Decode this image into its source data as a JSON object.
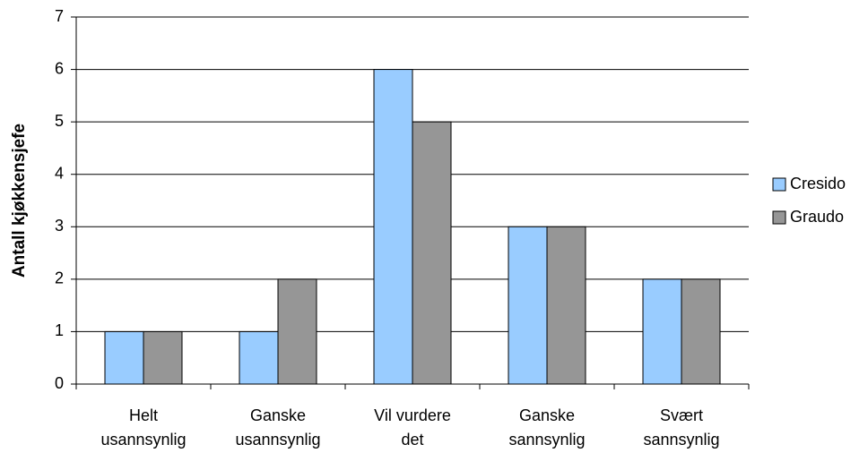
{
  "chart_data": {
    "type": "bar",
    "categories": [
      [
        "Helt",
        "usannsynlig"
      ],
      [
        "Ganske",
        "usannsynlig"
      ],
      [
        "Vil vurdere",
        "det"
      ],
      [
        "Ganske",
        "sannsynlig"
      ],
      [
        "Svært",
        "sannsynlig"
      ]
    ],
    "series": [
      {
        "name": "Cresido",
        "color": "#99ccff",
        "values": [
          1,
          1,
          6,
          3,
          2
        ]
      },
      {
        "name": "Graudo",
        "color": "#969696",
        "values": [
          1,
          2,
          5,
          3,
          2
        ]
      }
    ],
    "ylabel": "Antall kjøkkensjefe",
    "ylim": [
      0,
      7
    ],
    "yticks": [
      0,
      1,
      2,
      3,
      4,
      5,
      6,
      7
    ],
    "grid": true,
    "legend": "right"
  }
}
